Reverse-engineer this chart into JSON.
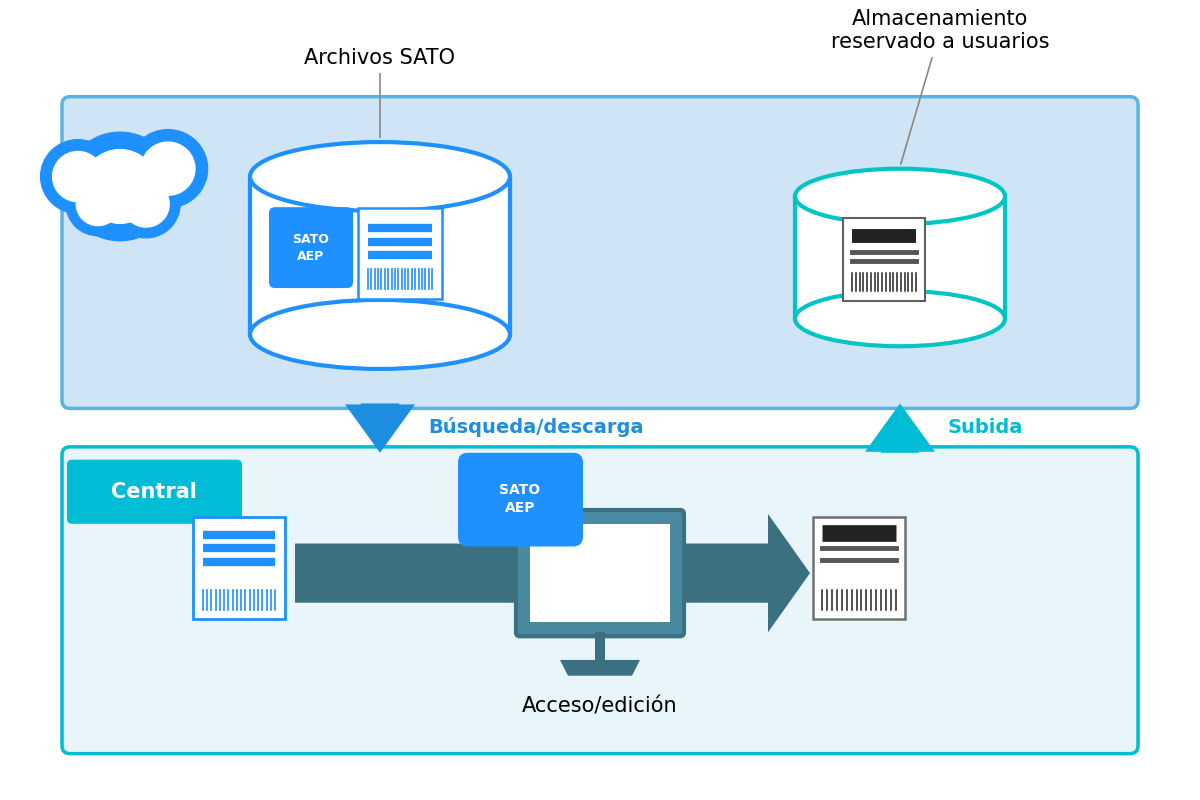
{
  "bg_color": "#ffffff",
  "upper_box_color": "#cfe4f5",
  "upper_box_border": "#5ab4e0",
  "lower_box_color": "#e8f6fb",
  "lower_box_border": "#00bcd4",
  "central_box_color": "#00bcd4",
  "central_text": "Central",
  "db1_color": "#1e90ff",
  "db2_color": "#00c5c5",
  "label_archivos": "Archivos SATO",
  "label_almacenamiento": "Almacenamiento\nreservado a usuarios",
  "label_busqueda": "Búsqueda/descarga",
  "label_subida": "Subida",
  "label_acceso": "Acceso/edición",
  "label_sato_aep": "SATO\nAEP",
  "arrow_down_color": "#1e8fe0",
  "arrow_up_color": "#00bcd4",
  "monitor_color": "#4a8aa0",
  "monitor_dark": "#3a7080",
  "cloud_color": "#1e90ff",
  "cloud_white": "#ffffff"
}
